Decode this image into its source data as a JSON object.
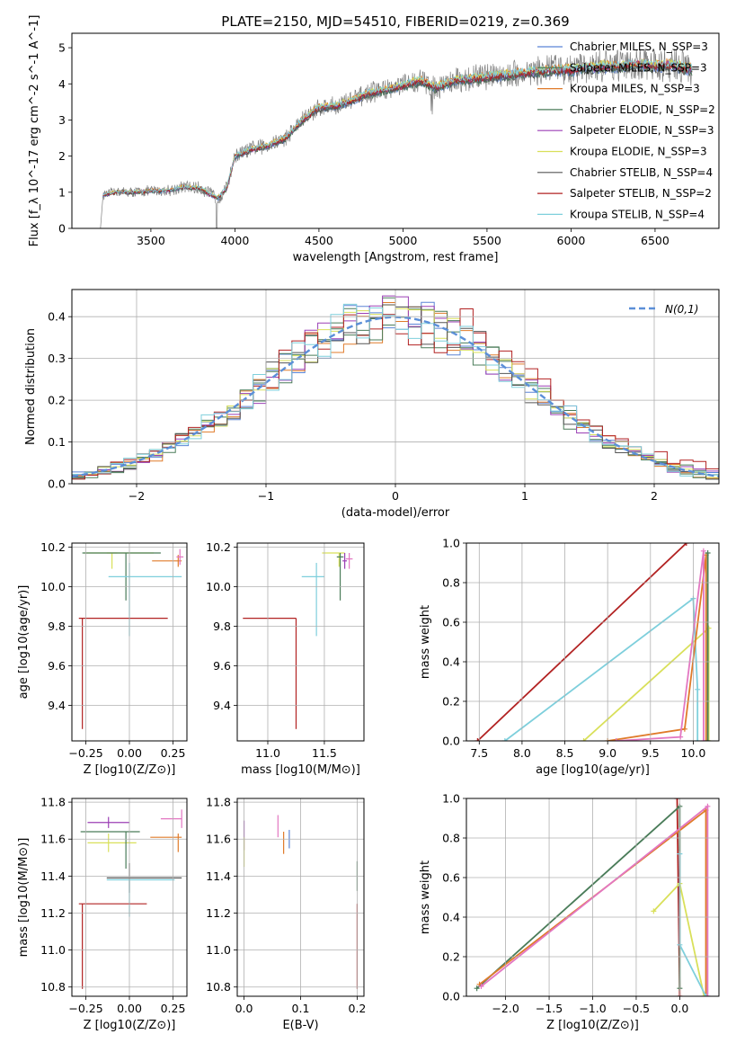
{
  "title": "PLATE=2150, MJD=54510, FIBERID=0219, z=0.369",
  "models": [
    {
      "label": "Chabrier MILES, N_SSP=3",
      "color": "#5b84d6"
    },
    {
      "label": "Salpeter MILES, N_SSP=3",
      "color": "#4a7c59"
    },
    {
      "label": "Kroupa MILES, N_SSP=3",
      "color": "#e07b2a"
    },
    {
      "label": "Chabrier ELODIE, N_SSP=2",
      "color": "#4a7c59"
    },
    {
      "label": "Salpeter ELODIE, N_SSP=3",
      "color": "#9b3fb5"
    },
    {
      "label": "Kroupa ELODIE, N_SSP=3",
      "color": "#d9e05a"
    },
    {
      "label": "Chabrier STELIB, N_SSP=4",
      "color": "#555555"
    },
    {
      "label": "Salpeter STELIB, N_SSP=2",
      "color": "#b22222"
    },
    {
      "label": "Kroupa STELIB, N_SSP=4",
      "color": "#7ecfdc"
    }
  ],
  "chart_data": [
    {
      "type": "line",
      "id": "spectrum",
      "title": "PLATE=2150, MJD=54510, FIBERID=0219, z=0.369",
      "xlabel": "wavelength [Angstrom, rest frame]",
      "ylabel": "Flux [f_λ 10^-17 erg cm^-2 s^-1 A^-1]",
      "xlim": [
        3030,
        6880
      ],
      "ylim": [
        0,
        5.4
      ],
      "xticks": [
        "3500",
        "4000",
        "4500",
        "5000",
        "5500",
        "6000",
        "6500"
      ],
      "yticks": [
        "0",
        "1",
        "2",
        "3",
        "4",
        "5"
      ],
      "legend": "top-right",
      "data_color": "#808080",
      "continuum_x": [
        3215,
        3300,
        3400,
        3500,
        3600,
        3700,
        3800,
        3850,
        3900,
        3950,
        4000,
        4100,
        4200,
        4300,
        4400,
        4500,
        4600,
        4700,
        4800,
        4900,
        5000,
        5100,
        5200,
        5300,
        5400,
        5500,
        5600,
        5700,
        5800,
        5900,
        6000,
        6100,
        6200,
        6300,
        6400,
        6500,
        6600,
        6720
      ],
      "continuum_y": [
        0.92,
        1.02,
        1.0,
        1.04,
        1.05,
        1.15,
        1.1,
        0.95,
        0.85,
        1.1,
        2.0,
        2.2,
        2.3,
        2.5,
        3.0,
        3.35,
        3.4,
        3.55,
        3.75,
        3.85,
        3.95,
        4.1,
        3.9,
        4.1,
        4.15,
        4.2,
        4.25,
        4.3,
        4.35,
        4.4,
        4.4,
        4.45,
        4.5,
        4.5,
        4.55,
        4.5,
        4.55,
        4.4
      ]
    },
    {
      "type": "line",
      "id": "residual-distribution",
      "xlabel": "(data-model)/error",
      "ylabel": "Normed distribution",
      "xlim": [
        -2.5,
        2.5
      ],
      "ylim": [
        0,
        0.465
      ],
      "xticks": [
        "−2",
        "−1",
        "0",
        "1",
        "2"
      ],
      "yticks": [
        "0.0",
        "0.1",
        "0.2",
        "0.3",
        "0.4"
      ],
      "legend_label": "N(0,1)",
      "legend": "top-right",
      "gauss_color": "#5b8fd8"
    },
    {
      "type": "scatter",
      "id": "age-vs-Z",
      "xlabel": "Z [log10(Z/Z⊙)]",
      "ylabel": "age [log10(age/yr)]",
      "xlim": [
        -0.33,
        0.33
      ],
      "ylim": [
        9.22,
        10.22
      ],
      "xticks": [
        "−0.25",
        "0.00",
        "0.25"
      ],
      "yticks": [
        "9.4",
        "9.6",
        "9.8",
        "10.0",
        "10.2"
      ],
      "points": [
        {
          "x": 0.12,
          "y": 10.17,
          "color": "#d9e05a",
          "xe": [
            0.38,
            0.02
          ],
          "ye": [
            0.0,
            0.0
          ]
        },
        {
          "x": 0.28,
          "y": 10.13,
          "color": "#e07b2a",
          "xe": [
            0.15,
            0.02
          ],
          "ye": [
            0.03,
            0.03
          ]
        },
        {
          "x": 0.29,
          "y": 10.15,
          "color": "#e377c2",
          "xe": [
            0.02,
            0.02
          ],
          "ye": [
            0.04,
            0.04
          ]
        },
        {
          "x": -0.1,
          "y": 10.17,
          "color": "#d9e05a",
          "xe": [
            0.03,
            0.03
          ],
          "ye": [
            0.08,
            0.0
          ]
        },
        {
          "x": -0.02,
          "y": 10.17,
          "color": "#4a7c59",
          "xe": [
            0.25,
            0.2
          ],
          "ye": [
            0.24,
            0.0
          ]
        },
        {
          "x": 0.0,
          "y": 10.05,
          "color": "#7ecfdc",
          "xe": [
            0.12,
            0.3
          ],
          "ye": [
            0.3,
            0.07
          ]
        },
        {
          "x": -0.27,
          "y": 9.84,
          "color": "#b22222",
          "xe": [
            0.02,
            0.49
          ],
          "ye": [
            0.56,
            0.0
          ]
        }
      ]
    },
    {
      "type": "scatter",
      "id": "age-vs-mass",
      "xlabel": "mass [log10(M/M⊙)]",
      "ylabel": "",
      "xlim": [
        10.73,
        11.85
      ],
      "ylim": [
        9.22,
        10.22
      ],
      "xticks": [
        "11.0",
        "11.5"
      ],
      "yticks": [
        "9.4",
        "9.6",
        "9.8",
        "10.0",
        "10.2"
      ],
      "points": [
        {
          "x": 11.63,
          "y": 10.17,
          "color": "#d9e05a",
          "xe": [
            0.15,
            0.05
          ],
          "ye": [
            0.07,
            0.0
          ]
        },
        {
          "x": 11.72,
          "y": 10.14,
          "color": "#e377c2",
          "xe": [
            0.03,
            0.03
          ],
          "ye": [
            0.05,
            0.03
          ]
        },
        {
          "x": 11.68,
          "y": 10.13,
          "color": "#9b3fb5",
          "xe": [
            0.02,
            0.02
          ],
          "ye": [
            0.04,
            0.04
          ]
        },
        {
          "x": 11.64,
          "y": 10.15,
          "color": "#4a7c59",
          "xe": [
            0.03,
            0.03
          ],
          "ye": [
            0.22,
            0.02
          ]
        },
        {
          "x": 11.43,
          "y": 10.05,
          "color": "#7ecfdc",
          "xe": [
            0.13,
            0.07
          ],
          "ye": [
            0.3,
            0.07
          ]
        },
        {
          "x": 11.25,
          "y": 9.84,
          "color": "#b22222",
          "xe": [
            0.47,
            0.0
          ],
          "ye": [
            0.56,
            0.0
          ]
        }
      ]
    },
    {
      "type": "line",
      "id": "mass-weight-vs-age",
      "xlabel": "age [log10(age/yr)]",
      "ylabel": "mass weight",
      "xlim": [
        7.35,
        10.3
      ],
      "ylim": [
        0,
        1.0
      ],
      "xticks": [
        "7.5",
        "8.0",
        "8.5",
        "9.0",
        "9.5",
        "10.0"
      ],
      "yticks": [
        "0.0",
        "0.2",
        "0.4",
        "0.6",
        "0.8",
        "1.0"
      ],
      "series": [
        {
          "color": "#b22222",
          "x": [
            7.48,
            9.92
          ],
          "y": [
            0.0,
            1.0
          ]
        },
        {
          "color": "#d9e05a",
          "x": [
            8.72,
            10.18,
            10.18
          ],
          "y": [
            0.0,
            0.57,
            0.0
          ]
        },
        {
          "color": "#7ecfdc",
          "x": [
            7.8,
            10.0,
            10.05,
            10.05
          ],
          "y": [
            0.0,
            0.72,
            0.26,
            0.0
          ]
        },
        {
          "color": "#e07b2a",
          "x": [
            9.0,
            9.9,
            10.15,
            10.15
          ],
          "y": [
            0.0,
            0.06,
            0.94,
            0.0
          ]
        },
        {
          "color": "#e377c2",
          "x": [
            9.1,
            9.85,
            10.12,
            10.12
          ],
          "y": [
            0.0,
            0.02,
            0.96,
            0.0
          ]
        },
        {
          "color": "#4a7c59",
          "x": [
            10.17,
            10.17
          ],
          "y": [
            0.95,
            0.0
          ]
        }
      ]
    },
    {
      "type": "scatter",
      "id": "mass-vs-Z",
      "xlabel": "Z [log10(Z/Z⊙)]",
      "ylabel": "mass [log10(M/M⊙)]",
      "xlim": [
        -0.33,
        0.33
      ],
      "ylim": [
        10.75,
        11.82
      ],
      "xticks": [
        "−0.25",
        "0.00",
        "0.25"
      ],
      "yticks": [
        "10.8",
        "11.0",
        "11.2",
        "11.4",
        "11.6",
        "11.8"
      ],
      "points": [
        {
          "x": -0.12,
          "y": 11.69,
          "color": "#9b3fb5",
          "xe": [
            0.12,
            0.12
          ],
          "ye": [
            0.03,
            0.03
          ]
        },
        {
          "x": 0.3,
          "y": 11.71,
          "color": "#e377c2",
          "xe": [
            0.12,
            0.0
          ],
          "ye": [
            0.05,
            0.05
          ]
        },
        {
          "x": 0.28,
          "y": 11.61,
          "color": "#e07b2a",
          "xe": [
            0.16,
            0.02
          ],
          "ye": [
            0.08,
            0.02
          ]
        },
        {
          "x": -0.12,
          "y": 11.58,
          "color": "#d9e05a",
          "xe": [
            0.12,
            0.16
          ],
          "ye": [
            0.05,
            0.05
          ]
        },
        {
          "x": -0.02,
          "y": 11.64,
          "color": "#4a7c59",
          "xe": [
            0.26,
            0.08
          ],
          "ye": [
            0.2,
            0.0
          ]
        },
        {
          "x": 0.0,
          "y": 11.39,
          "color": "#555555",
          "xe": [
            0.13,
            0.3
          ],
          "ye": [
            0.08,
            0.08
          ]
        },
        {
          "x": 0.0,
          "y": 11.38,
          "color": "#7ecfdc",
          "xe": [
            0.13,
            0.26
          ],
          "ye": [
            0.2,
            0.0
          ]
        },
        {
          "x": -0.27,
          "y": 11.25,
          "color": "#b22222",
          "xe": [
            0.02,
            0.37
          ],
          "ye": [
            0.46,
            0.0
          ]
        }
      ]
    },
    {
      "type": "scatter",
      "id": "mass-vs-EBV",
      "xlabel": "E(B-V)",
      "ylabel": "",
      "xlim": [
        -0.012,
        0.212
      ],
      "ylim": [
        10.75,
        11.82
      ],
      "xticks": [
        "0.0",
        "0.1",
        "0.2"
      ],
      "yticks": [
        "10.8",
        "11.0",
        "11.2",
        "11.4",
        "11.6",
        "11.8"
      ],
      "points": [
        {
          "x": 0.0,
          "y": 11.62,
          "color": "#9b3fb5",
          "xe": [
            0.0,
            0.0
          ],
          "ye": [
            0.08,
            0.08
          ]
        },
        {
          "x": 0.0,
          "y": 11.53,
          "color": "#d9e05a",
          "xe": [
            0.0,
            0.0
          ],
          "ye": [
            0.08,
            0.08
          ]
        },
        {
          "x": 0.06,
          "y": 11.67,
          "color": "#e377c2",
          "xe": [
            0.0,
            0.0
          ],
          "ye": [
            0.06,
            0.06
          ]
        },
        {
          "x": 0.07,
          "y": 11.58,
          "color": "#e07b2a",
          "xe": [
            0.0,
            0.0
          ],
          "ye": [
            0.06,
            0.06
          ]
        },
        {
          "x": 0.08,
          "y": 11.6,
          "color": "#5b84d6",
          "xe": [
            0.0,
            0.0
          ],
          "ye": [
            0.05,
            0.05
          ]
        },
        {
          "x": 0.2,
          "y": 11.4,
          "color": "#4a7c59",
          "xe": [
            0.0,
            0.0
          ],
          "ye": [
            0.08,
            0.08
          ]
        },
        {
          "x": 0.2,
          "y": 11.25,
          "color": "#b22222",
          "xe": [
            0.0,
            0.0
          ],
          "ye": [
            0.46,
            0.0
          ]
        }
      ]
    },
    {
      "type": "line",
      "id": "mass-weight-vs-Z",
      "xlabel": "Z [log10(Z/Z⊙)]",
      "ylabel": "mass weight",
      "xlim": [
        -2.45,
        0.45
      ],
      "ylim": [
        0,
        1.0
      ],
      "xticks": [
        "−2.0",
        "−1.5",
        "−1.0",
        "−0.5",
        "0.0"
      ],
      "yticks": [
        "0.0",
        "0.2",
        "0.4",
        "0.6",
        "0.8",
        "1.0"
      ],
      "series": [
        {
          "color": "#b22222",
          "x": [
            -0.03,
            0.0
          ],
          "y": [
            1.0,
            0.0
          ]
        },
        {
          "color": "#4a7c59",
          "x": [
            -2.33,
            0.0,
            0.0
          ],
          "y": [
            0.04,
            0.96,
            0.04
          ]
        },
        {
          "color": "#e07b2a",
          "x": [
            -2.3,
            0.3,
            0.3
          ],
          "y": [
            0.06,
            0.94,
            0.0
          ]
        },
        {
          "color": "#e377c2",
          "x": [
            -2.28,
            0.32,
            0.32
          ],
          "y": [
            0.05,
            0.96,
            0.0
          ]
        },
        {
          "color": "#d9e05a",
          "x": [
            -0.3,
            0.0,
            0.28
          ],
          "y": [
            0.43,
            0.57,
            0.0
          ]
        },
        {
          "color": "#7ecfdc",
          "x": [
            0.0,
            0.0,
            0.3
          ],
          "y": [
            0.72,
            0.26,
            0.0
          ]
        }
      ]
    }
  ]
}
